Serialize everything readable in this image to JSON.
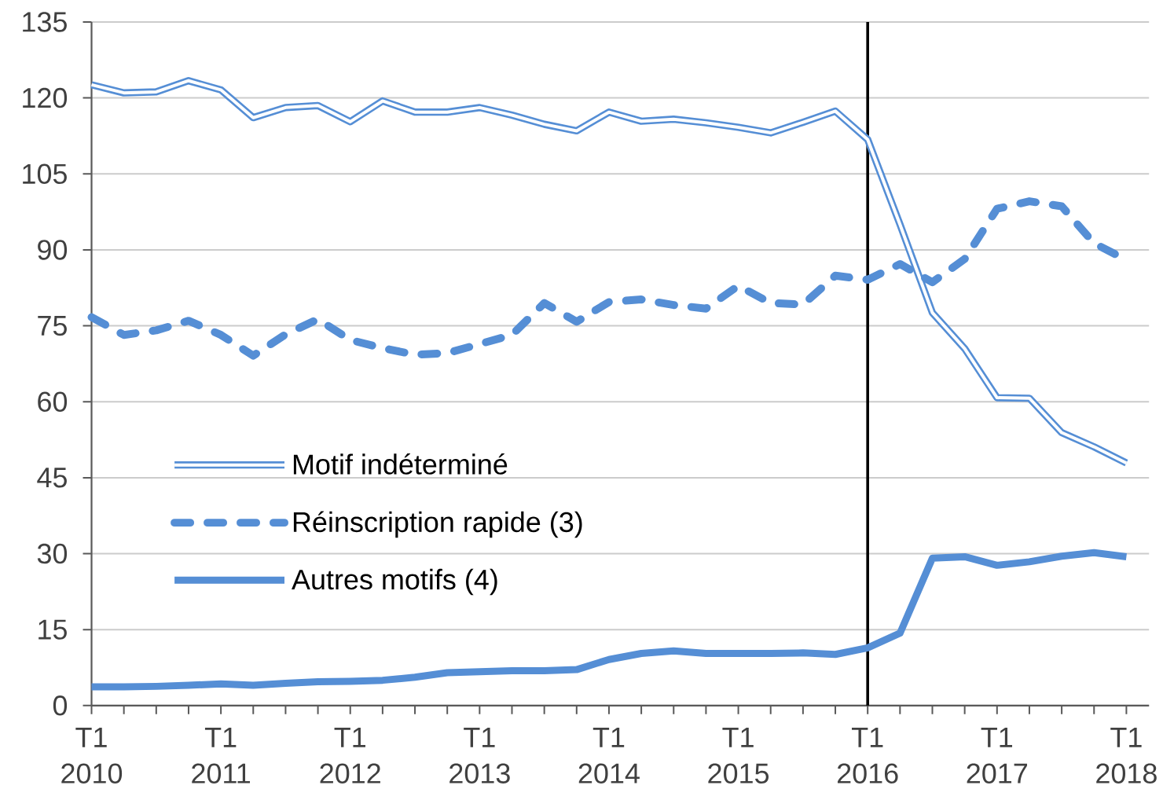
{
  "chart_data": {
    "type": "line",
    "categories": [
      "T1 2010",
      null,
      null,
      null,
      "T1 2011",
      null,
      null,
      null,
      "T1 2012",
      null,
      null,
      null,
      "T1 2013",
      null,
      null,
      null,
      "T1 2014",
      null,
      null,
      null,
      "T1 2015",
      null,
      null,
      null,
      "T1 2016",
      null,
      null,
      null,
      "T1 2017",
      null,
      null,
      null,
      "T1 2018"
    ],
    "series": [
      {
        "name": "Motif indéterminé",
        "color": "#558ed5",
        "line_style": "solid",
        "values": [
          122.6,
          121.0,
          121.2,
          123.4,
          121.6,
          116.1,
          118.1,
          118.5,
          115.3,
          119.4,
          117.2,
          117.2,
          118.1,
          116.6,
          114.8,
          113.5,
          117.2,
          115.4,
          115.8,
          115.1,
          114.2,
          113.1,
          115.2,
          117.4,
          111.8,
          95.0,
          77.6,
          70.5,
          60.8,
          60.7,
          53.9,
          51.1,
          47.9
        ]
      },
      {
        "name": "Réinscription rapide (3)",
        "color": "#558ed5",
        "line_style": "dashed",
        "values": [
          76.7,
          73.2,
          74.1,
          76.0,
          73.2,
          69.1,
          73.3,
          76.3,
          72.2,
          70.6,
          69.3,
          69.6,
          71.4,
          73.2,
          79.5,
          75.8,
          79.7,
          80.2,
          79.1,
          78.4,
          82.9,
          79.5,
          79.2,
          84.9,
          84.1,
          87.2,
          83.6,
          88.2,
          98.1,
          99.6,
          98.6,
          91.3,
          88.0
        ]
      },
      {
        "name": "Autres motifs (4)",
        "color": "#558ed5",
        "line_style": "solid",
        "values": [
          3.7,
          3.7,
          3.8,
          4.0,
          4.3,
          4.0,
          4.4,
          4.7,
          4.8,
          5.0,
          5.6,
          6.5,
          6.7,
          6.9,
          6.9,
          7.1,
          9.1,
          10.3,
          10.8,
          10.3,
          10.3,
          10.3,
          10.4,
          10.1,
          11.4,
          14.3,
          29.1,
          29.4,
          27.7,
          28.4,
          29.5,
          30.2,
          29.4
        ]
      }
    ],
    "ylim": [
      0,
      135
    ],
    "yticks": [
      0,
      15,
      30,
      45,
      60,
      75,
      90,
      105,
      120,
      135
    ],
    "grid": "y",
    "legend": "bottom left",
    "ref_lines": [
      {
        "axis": "x",
        "value": "T1 2016",
        "color": "#000000"
      }
    ]
  }
}
